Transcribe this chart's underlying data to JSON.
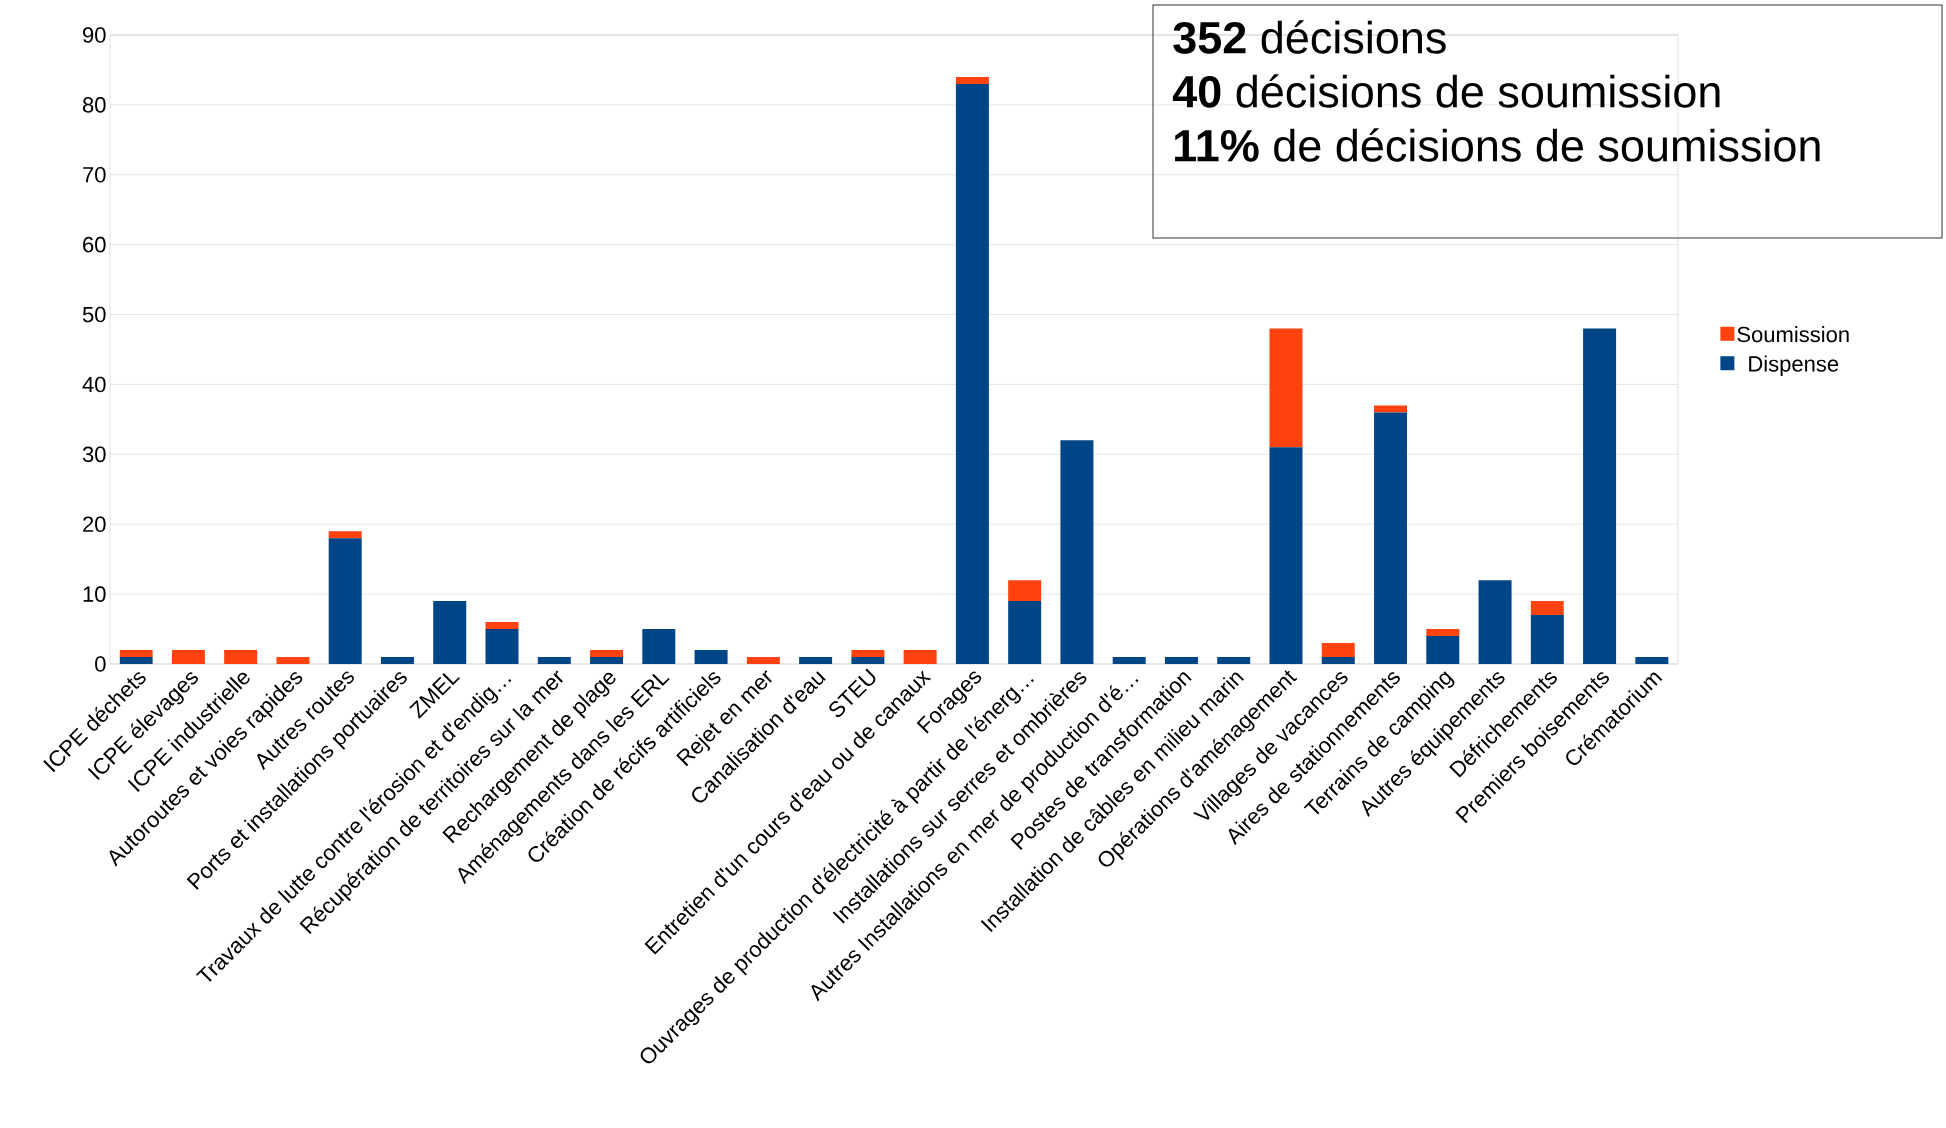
{
  "chart_data": {
    "type": "bar",
    "stacked": true,
    "categories": [
      "ICPE déchets",
      "ICPE élevages",
      "ICPE industrielle",
      "Autoroutes et voies rapides",
      "Autres routes",
      "Ports et installations portuaires",
      "ZMEL",
      "Travaux de lutte contre l'érosion et d'endig…",
      "Récupération de territoires sur la mer",
      "Rechargement de plage",
      "Aménagements dans les ERL",
      "Création de récifs artificiels",
      "Rejet en mer",
      "Canalisation d'eau",
      "STEU",
      "Entretien d'un cours d'eau ou de canaux",
      "Forages",
      "Ouvrages de production d'électricité à partir de l'énerg…",
      "Installations sur serres et ombrières",
      "Autres Installations en mer de production d'é…",
      "Postes de transformation",
      "Installation de câbles en milieu marin",
      "Opérations d'aménagement",
      "Villages de vacances",
      "Aires de stationnements",
      "Terrains de camping",
      "Autres équipements",
      "Défrichements",
      "Premiers boisements",
      "Crématorium"
    ],
    "series": [
      {
        "name": "Dispense",
        "color": "#004586",
        "values": [
          1,
          0,
          0,
          0,
          18,
          1,
          9,
          5,
          1,
          1,
          5,
          2,
          0,
          1,
          1,
          0,
          83,
          9,
          32,
          1,
          1,
          1,
          31,
          1,
          36,
          4,
          12,
          7,
          48,
          1
        ]
      },
      {
        "name": "Soumission",
        "color": "#ff420e",
        "values": [
          1,
          2,
          2,
          1,
          1,
          0,
          0,
          1,
          0,
          1,
          0,
          0,
          1,
          0,
          1,
          2,
          1,
          3,
          0,
          0,
          0,
          0,
          17,
          2,
          1,
          1,
          0,
          2,
          0,
          0
        ]
      }
    ],
    "ylim": [
      0,
      90
    ],
    "yticks": [
      0,
      10,
      20,
      30,
      40,
      50,
      60,
      70,
      80,
      90
    ],
    "grid": "y",
    "legend": "right",
    "annotations": [
      "**352** décisions",
      "**40** décisions de soumission",
      "**11%** de décisions de soumission"
    ]
  }
}
